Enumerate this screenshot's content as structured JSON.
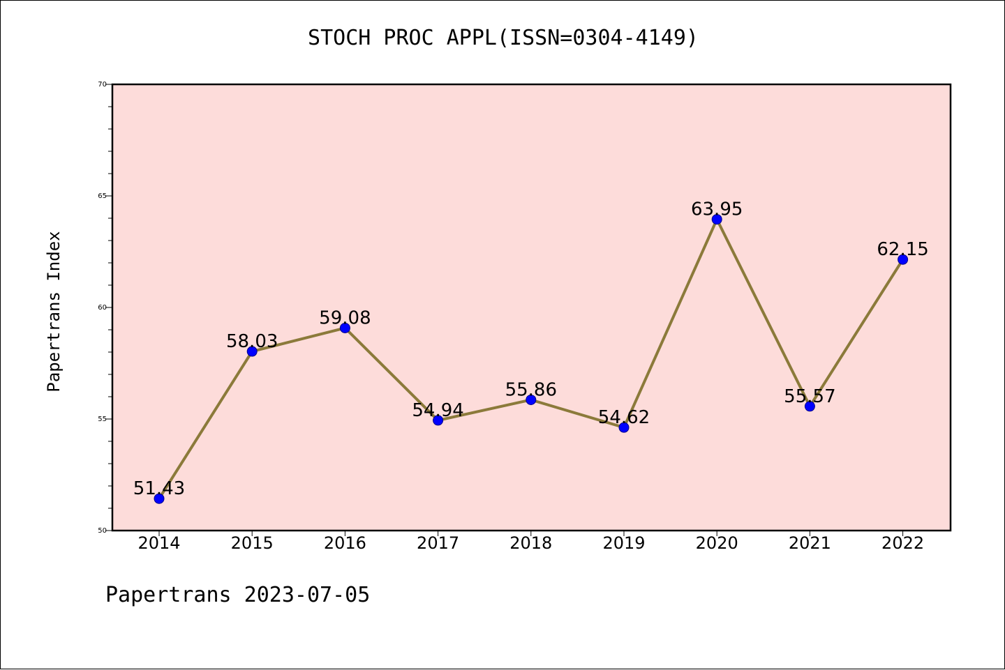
{
  "chart_data": {
    "type": "line",
    "title": "STOCH PROC APPL(ISSN=0304-4149)",
    "xlabel": "",
    "ylabel": "Papertrans Index",
    "categories": [
      "2014",
      "2015",
      "2016",
      "2017",
      "2018",
      "2019",
      "2020",
      "2021",
      "2022"
    ],
    "series": [
      {
        "values": [
          51.43,
          58.03,
          59.08,
          54.94,
          55.86,
          54.62,
          63.95,
          55.57,
          62.15
        ],
        "labels": [
          "51.43",
          "58.03",
          "59.08",
          "54.94",
          "55.86",
          "54.62",
          "63.95",
          "55.57",
          "62.15"
        ],
        "line_color": "#8B7A3A",
        "marker_color": "#0000FF"
      }
    ],
    "ylim": [
      50,
      70
    ],
    "yticks": [
      "50",
      "55",
      "60",
      "65",
      "70"
    ],
    "background_color": "#FDDCDA",
    "grid": false
  },
  "footer": "Papertrans 2023-07-05"
}
